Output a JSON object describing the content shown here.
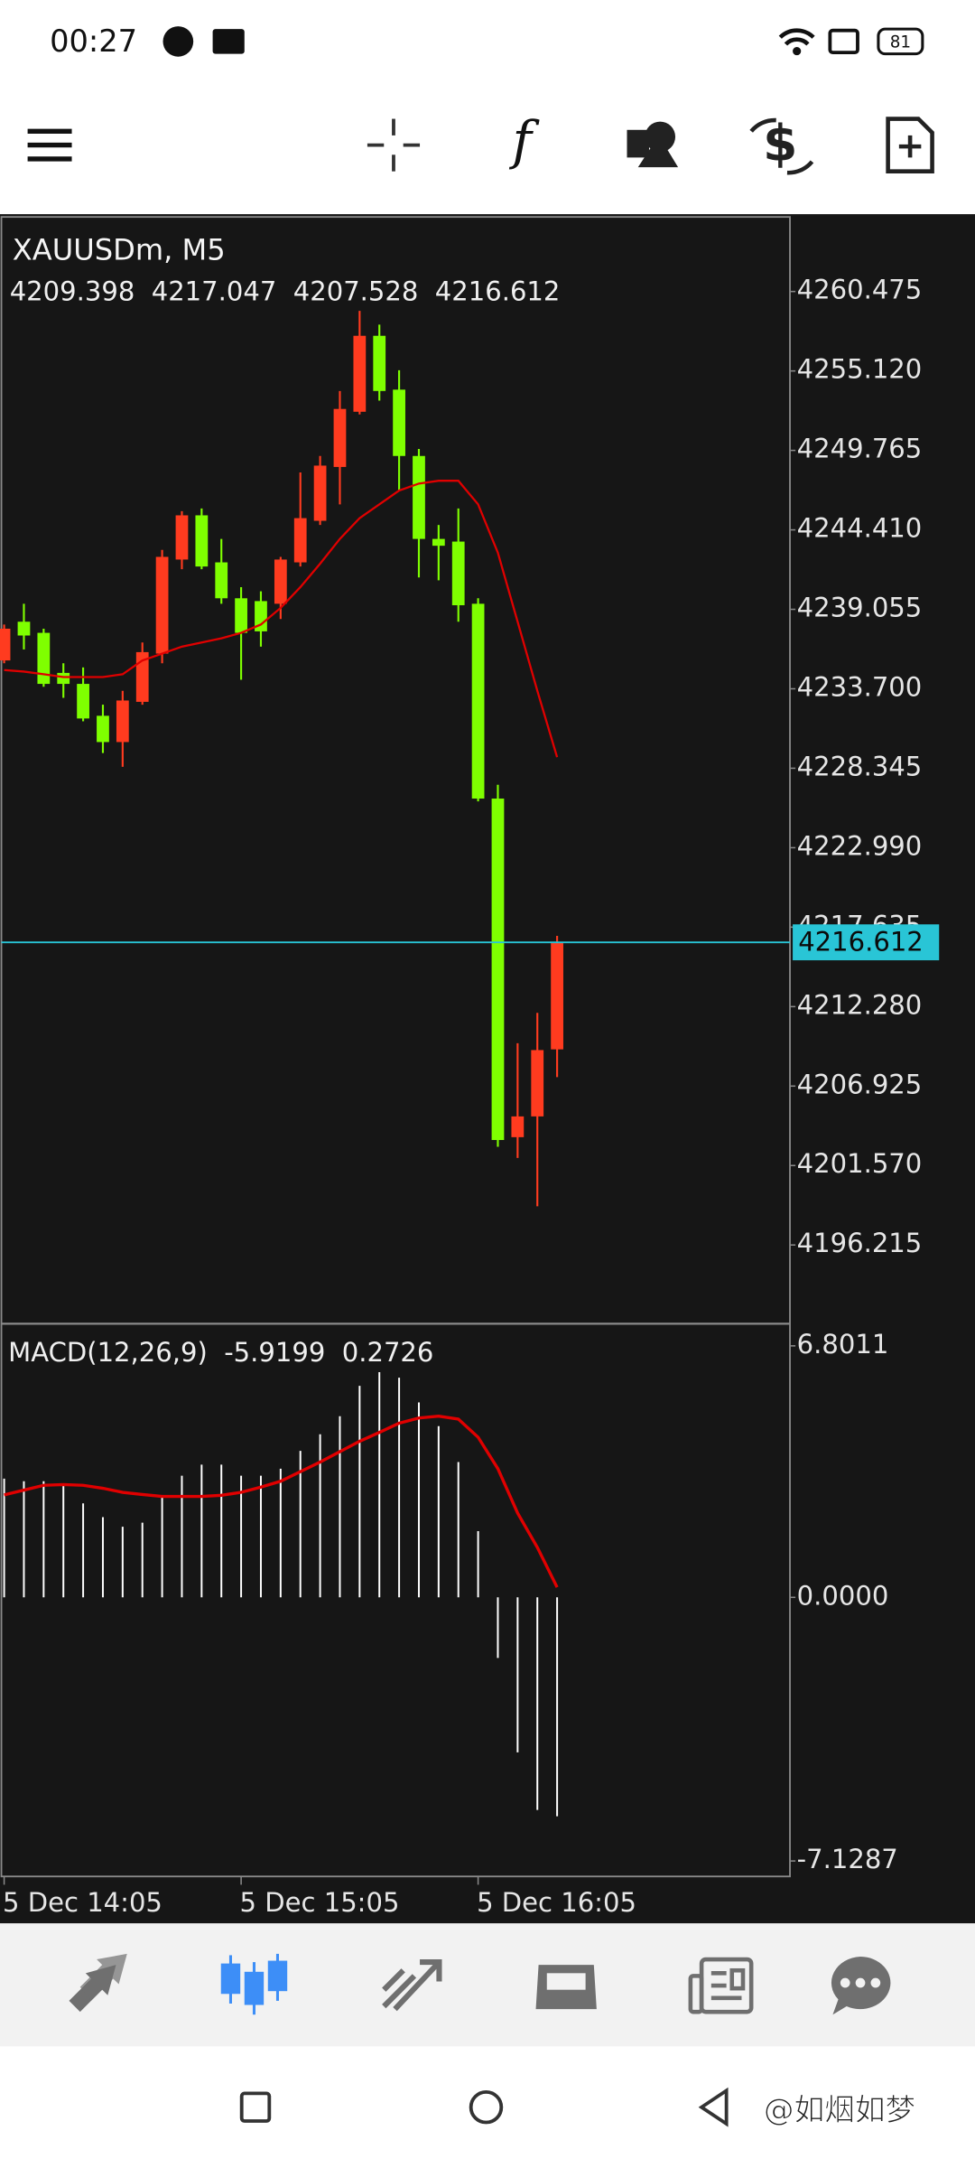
{
  "status_bar": {
    "time": "00:27",
    "battery": "81"
  },
  "chart_data": [
    {
      "type": "candlestick",
      "title": "XAUUSDm, M5",
      "open": [
        4235.61,
        4238.22,
        4237.47,
        4234.77,
        4234.03,
        4231.88,
        4230.11,
        4232.82,
        4236.07,
        4242.41,
        4245.39,
        4242.22,
        4239.8,
        4239.61,
        4239.43,
        4242.22,
        4245.02,
        4248.65,
        4252.37,
        4257.49,
        4253.86,
        4249.39,
        4243.8,
        4243.62,
        4239.43,
        4226.3,
        4203.48,
        4204.88,
        4209.398
      ],
      "high": [
        4238.03,
        4239.43,
        4237.75,
        4235.42,
        4235.14,
        4232.63,
        4233.56,
        4236.82,
        4243.06,
        4245.67,
        4245.85,
        4243.8,
        4240.55,
        4240.27,
        4242.59,
        4248.28,
        4249.39,
        4253.77,
        4259.17,
        4258.24,
        4255.17,
        4249.86,
        4244.74,
        4245.85,
        4239.8,
        4227.23,
        4209.81,
        4211.86,
        4217.047
      ],
      "low": [
        4235.42,
        4236.35,
        4233.84,
        4233.09,
        4231.51,
        4229.37,
        4228.44,
        4232.63,
        4235.42,
        4241.76,
        4241.76,
        4239.43,
        4234.31,
        4236.54,
        4238.4,
        4241.94,
        4244.74,
        4246.13,
        4252.19,
        4253.12,
        4247.06,
        4241.2,
        4241.01,
        4238.22,
        4226.11,
        4202.83,
        4202.08,
        4198.82,
        4207.528
      ],
      "close": [
        4237.75,
        4237.29,
        4234.03,
        4234.03,
        4231.7,
        4230.11,
        4232.91,
        4236.17,
        4242.59,
        4245.39,
        4241.94,
        4239.8,
        4237.47,
        4237.57,
        4242.41,
        4245.2,
        4248.74,
        4252.56,
        4257.49,
        4253.77,
        4249.39,
        4243.8,
        4243.34,
        4239.33,
        4226.3,
        4203.29,
        4204.88,
        4209.35,
        4216.612
      ],
      "up_color": "#ff3b1f",
      "down_color": "#7fff00",
      "overlay": {
        "color": "#e00000",
        "values": [
          4234.96,
          4234.86,
          4234.68,
          4234.49,
          4234.49,
          4234.49,
          4234.68,
          4235.61,
          4236.07,
          4236.54,
          4236.82,
          4237.1,
          4237.47,
          4238.03,
          4239.15,
          4240.55,
          4242.13,
          4243.8,
          4245.2,
          4246.13,
          4247.06,
          4247.53,
          4247.72,
          4247.72,
          4246.13,
          4242.87,
          4238.22,
          4233.56,
          4229.09
        ]
      },
      "price_line_color": "#29c5d6",
      "ylim": [
        4191.0,
        4265.5
      ],
      "yticks": [
        4260.475,
        {
          "value": 4255.12,
          "label": "4255.120"
        },
        4249.765,
        {
          "value": 4244.41,
          "label": "4244.410"
        },
        4239.055,
        {
          "value": 4233.7,
          "label": "4233.700"
        },
        4228.345,
        {
          "value": 4222.99,
          "label": "4222.990"
        },
        4217.635,
        {
          "value": 4212.28,
          "label": "4212.280"
        },
        4206.925,
        {
          "value": 4201.57,
          "label": "4201.570"
        },
        4196.215
      ]
    },
    {
      "type": "macd",
      "title": "MACD(12,26,9)",
      "categories": [
        "5 Dec 14:05",
        null,
        null,
        null,
        null,
        null,
        null,
        null,
        null,
        null,
        null,
        null,
        "5 Dec 15:05",
        null,
        null,
        null,
        null,
        null,
        null,
        null,
        null,
        null,
        null,
        null,
        "5 Dec 16:05",
        null,
        null,
        null,
        null
      ],
      "series": [
        {
          "color": "#ffffff",
          "values": [
            3.21,
            3.14,
            3.14,
            3.03,
            2.54,
            2.17,
            1.91,
            2.02,
            2.73,
            3.29,
            3.59,
            3.59,
            3.29,
            3.29,
            3.48,
            3.96,
            4.41,
            4.9,
            5.72,
            6.09,
            5.94,
            5.27,
            4.63,
            3.66,
            1.79,
            -1.64,
            -4.19,
            -5.75,
            -5.9199
          ]
        },
        {
          "color": "#e00000",
          "values": [
            2.77,
            2.9,
            3.03,
            3.05,
            3.03,
            2.95,
            2.84,
            2.78,
            2.73,
            2.73,
            2.73,
            2.76,
            2.84,
            2.98,
            3.14,
            3.4,
            3.66,
            3.94,
            4.22,
            4.46,
            4.71,
            4.85,
            4.9,
            4.82,
            4.33,
            3.48,
            2.28,
            1.35,
            0.2726
          ]
        }
      ],
      "ylim": [
        -7.547,
        7.399
      ],
      "yticks": [
        6.8011,
        {
          "value": 0,
          "label": "0.0000"
        },
        -7.1287
      ]
    }
  ],
  "watermark": "@如烟如梦"
}
